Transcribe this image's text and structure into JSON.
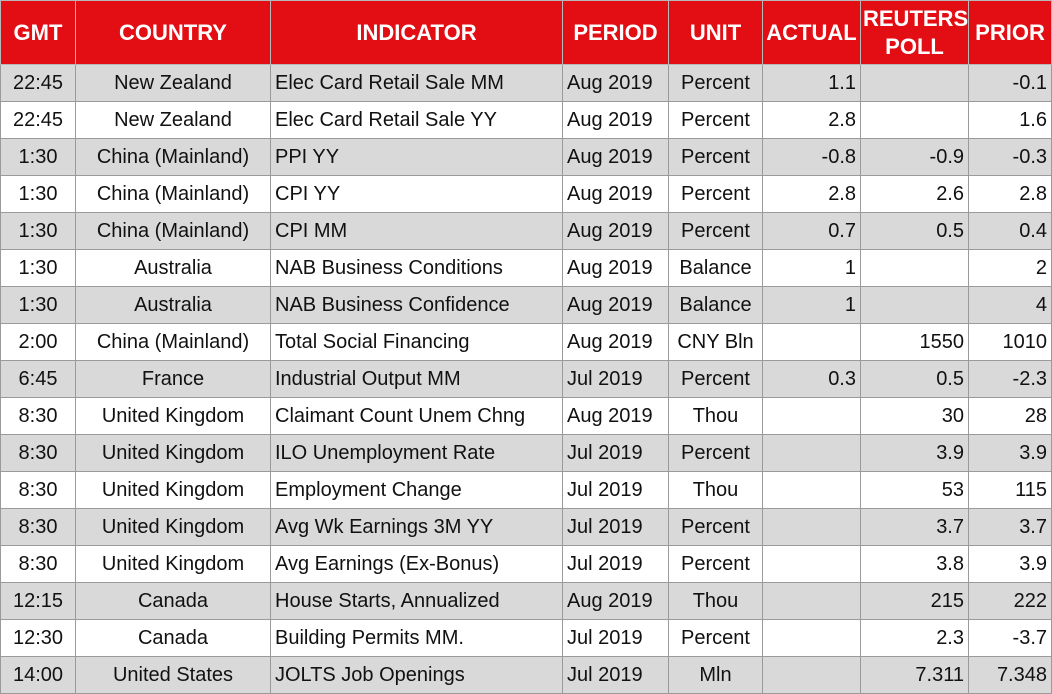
{
  "headers": {
    "gmt": "GMT",
    "country": "COUNTRY",
    "indicator": "INDICATOR",
    "period": "PERIOD",
    "unit": "UNIT",
    "actual": "ACTUAL",
    "reuters_poll_line1": "REUTERS",
    "reuters_poll_line2": "POLL",
    "prior": "PRIOR"
  },
  "colors": {
    "header_bg": "#e30e14",
    "header_text": "#ffffff",
    "row_shade": "#d9d9d9",
    "row_plain": "#ffffff"
  },
  "rows": [
    {
      "gmt": "22:45",
      "country": "New Zealand",
      "indicator": "Elec Card Retail Sale MM",
      "period": "Aug 2019",
      "unit": "Percent",
      "actual": "1.1",
      "poll": "",
      "prior": "-0.1"
    },
    {
      "gmt": "22:45",
      "country": "New Zealand",
      "indicator": "Elec Card Retail Sale YY",
      "period": "Aug 2019",
      "unit": "Percent",
      "actual": "2.8",
      "poll": "",
      "prior": "1.6"
    },
    {
      "gmt": "1:30",
      "country": "China (Mainland)",
      "indicator": "PPI YY",
      "period": "Aug 2019",
      "unit": "Percent",
      "actual": "-0.8",
      "poll": "-0.9",
      "prior": "-0.3"
    },
    {
      "gmt": "1:30",
      "country": "China (Mainland)",
      "indicator": "CPI YY",
      "period": "Aug 2019",
      "unit": "Percent",
      "actual": "2.8",
      "poll": "2.6",
      "prior": "2.8"
    },
    {
      "gmt": "1:30",
      "country": "China (Mainland)",
      "indicator": "CPI MM",
      "period": "Aug 2019",
      "unit": "Percent",
      "actual": "0.7",
      "poll": "0.5",
      "prior": "0.4"
    },
    {
      "gmt": "1:30",
      "country": "Australia",
      "indicator": "NAB Business Conditions",
      "period": "Aug 2019",
      "unit": "Balance",
      "actual": "1",
      "poll": "",
      "prior": "2"
    },
    {
      "gmt": "1:30",
      "country": "Australia",
      "indicator": "NAB Business Confidence",
      "period": "Aug 2019",
      "unit": "Balance",
      "actual": "1",
      "poll": "",
      "prior": "4"
    },
    {
      "gmt": "2:00",
      "country": "China (Mainland)",
      "indicator": "Total Social Financing",
      "period": "Aug 2019",
      "unit": "CNY Bln",
      "actual": "",
      "poll": "1550",
      "prior": "1010"
    },
    {
      "gmt": "6:45",
      "country": "France",
      "indicator": "Industrial Output MM",
      "period": "Jul 2019",
      "unit": "Percent",
      "actual": "0.3",
      "poll": "0.5",
      "prior": "-2.3"
    },
    {
      "gmt": "8:30",
      "country": "United Kingdom",
      "indicator": "Claimant Count Unem Chng",
      "period": "Aug 2019",
      "unit": "Thou",
      "actual": "",
      "poll": "30",
      "prior": "28"
    },
    {
      "gmt": "8:30",
      "country": "United Kingdom",
      "indicator": "ILO Unemployment Rate",
      "period": "Jul 2019",
      "unit": "Percent",
      "actual": "",
      "poll": "3.9",
      "prior": "3.9"
    },
    {
      "gmt": "8:30",
      "country": "United Kingdom",
      "indicator": "Employment Change",
      "period": "Jul 2019",
      "unit": "Thou",
      "actual": "",
      "poll": "53",
      "prior": "115"
    },
    {
      "gmt": "8:30",
      "country": "United Kingdom",
      "indicator": "Avg Wk Earnings 3M YY",
      "period": "Jul 2019",
      "unit": "Percent",
      "actual": "",
      "poll": "3.7",
      "prior": "3.7"
    },
    {
      "gmt": "8:30",
      "country": "United Kingdom",
      "indicator": "Avg Earnings (Ex-Bonus)",
      "period": "Jul 2019",
      "unit": "Percent",
      "actual": "",
      "poll": "3.8",
      "prior": "3.9"
    },
    {
      "gmt": "12:15",
      "country": "Canada",
      "indicator": "House Starts, Annualized",
      "period": "Aug 2019",
      "unit": "Thou",
      "actual": "",
      "poll": "215",
      "prior": "222"
    },
    {
      "gmt": "12:30",
      "country": "Canada",
      "indicator": "Building Permits MM.",
      "period": "Jul 2019",
      "unit": "Percent",
      "actual": "",
      "poll": "2.3",
      "prior": "-3.7"
    },
    {
      "gmt": "14:00",
      "country": "United States",
      "indicator": "JOLTS Job Openings",
      "period": "Jul 2019",
      "unit": "Mln",
      "actual": "",
      "poll": "7.311",
      "prior": "7.348"
    }
  ]
}
